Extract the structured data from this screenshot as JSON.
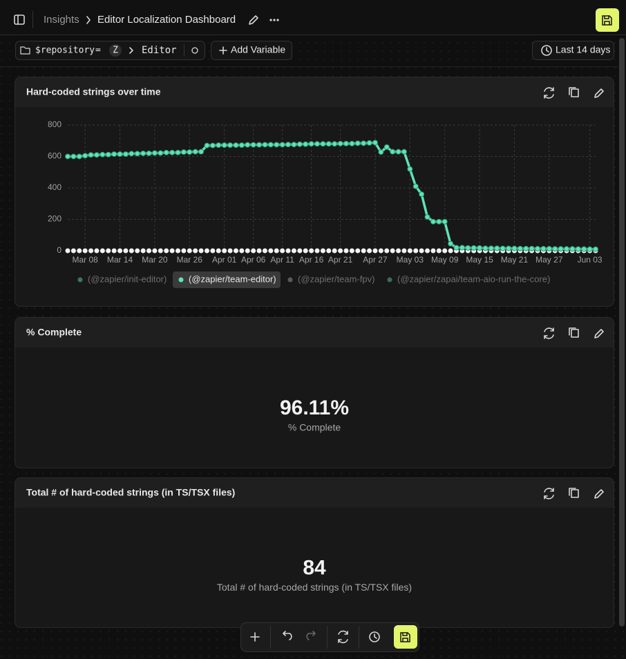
{
  "header": {
    "breadcrumb": [
      "Insights",
      "Editor Localization Dashboard"
    ]
  },
  "filters": {
    "variable": "$repository",
    "operator": "=",
    "avatar": "Z",
    "value": "Editor",
    "add_button": "Add Variable",
    "date_range": "Last 14 days"
  },
  "panels": [
    {
      "title": "Hard-coded strings over time",
      "chart": {
        "type": "line",
        "categories": [
          null,
          null,
          null,
          "Mar 08",
          null,
          null,
          null,
          null,
          null,
          "Mar 14",
          null,
          null,
          null,
          null,
          null,
          "Mar 20",
          null,
          null,
          null,
          null,
          null,
          "Mar 26",
          null,
          null,
          null,
          null,
          null,
          "Apr 01",
          null,
          null,
          null,
          null,
          "Apr 06",
          null,
          null,
          null,
          null,
          "Apr 11",
          null,
          null,
          null,
          null,
          "Apr 16",
          null,
          null,
          null,
          null,
          "Apr 21",
          null,
          null,
          null,
          null,
          null,
          "Apr 27",
          null,
          null,
          null,
          null,
          null,
          "May 03",
          null,
          null,
          null,
          null,
          null,
          "May 09",
          null,
          null,
          null,
          null,
          null,
          "May 15",
          null,
          null,
          null,
          null,
          null,
          "May 21",
          null,
          null,
          null,
          null,
          null,
          "May 27",
          null,
          null,
          null,
          null,
          null,
          null,
          "Jun 03",
          null
        ],
        "series": [
          {
            "name": "(@zapier/team-editor)",
            "color": "#5fe3b3",
            "values": [
              600,
              600,
              600,
              605,
              610,
              610,
              612,
              612,
              615,
              615,
              615,
              618,
              618,
              620,
              620,
              622,
              622,
              625,
              625,
              625,
              628,
              628,
              630,
              630,
              670,
              670,
              672,
              672,
              672,
              672,
              672,
              674,
              674,
              674,
              675,
              675,
              675,
              675,
              676,
              676,
              678,
              678,
              680,
              680,
              680,
              680,
              680,
              682,
              682,
              682,
              684,
              684,
              686,
              688,
              628,
              660,
              630,
              630,
              630,
              520,
              410,
              360,
              215,
              185,
              185,
              185,
              45,
              20,
              20,
              18,
              18,
              18,
              16,
              16,
              16,
              15,
              15,
              15,
              14,
              14,
              14,
              13,
              13,
              13,
              12,
              12,
              12,
              12,
              11,
              11,
              10,
              10
            ]
          }
        ],
        "hidden_series": [
          {
            "name": "(@zapier/init-editor)",
            "color": "#3e7564"
          },
          {
            "name": "(@zapier/team-fpv)",
            "color": "#5a5a5a"
          },
          {
            "name": "(@zapier/zapai/team-aio-run-the-core)",
            "color": "#3e6a60"
          }
        ],
        "ylim": [
          0,
          800
        ],
        "yticks": [
          0,
          200,
          400,
          600,
          800
        ],
        "grid": true,
        "legend_position": "bottom"
      }
    },
    {
      "title": "% Complete",
      "value": "96.11%",
      "label": "% Complete"
    },
    {
      "title": "Total # of hard-coded strings (in TS/TSX files)",
      "value": "84",
      "label": "Total # of hard-coded strings (in TS/TSX files)"
    }
  ]
}
